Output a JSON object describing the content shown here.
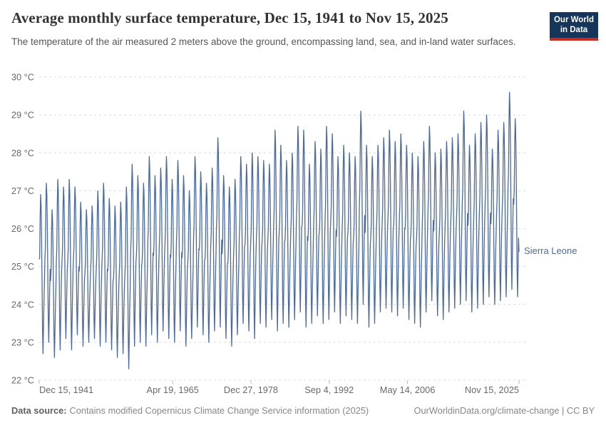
{
  "header": {
    "logo": {
      "line1": "Our World",
      "line2": "in Data",
      "bg_color": "#16355a",
      "accent_color": "#ca2b20"
    }
  },
  "footer": {
    "source_label": "Data source:",
    "source_text": "Contains modified Copernicus Climate Change Service information (2025)",
    "link": "OurWorldinData.org/climate-change",
    "license_suffix": " | CC BY"
  },
  "chart_data": {
    "type": "line",
    "title": "Average monthly surface temperature, Dec 15, 1941 to Nov 15, 2025",
    "subtitle": "The temperature of the air measured 2 meters above the ground, encompassing land, sea, and in-land water surfaces.",
    "unit": "°C",
    "ylim": [
      22,
      30
    ],
    "y_ticks": [
      22,
      23,
      24,
      25,
      26,
      27,
      28,
      29,
      30
    ],
    "y_tick_suffix": " °C",
    "x_ticks": [
      {
        "label": "Dec 15, 1941",
        "t": 1941.956
      },
      {
        "label": "Apr 19, 1965",
        "t": 1965.299
      },
      {
        "label": "Dec 27, 1978",
        "t": 1978.989
      },
      {
        "label": "Sep 4, 1992",
        "t": 1992.679
      },
      {
        "label": "May 14, 2006",
        "t": 2006.367
      },
      {
        "label": "Nov 15, 2025",
        "t": 2025.874
      }
    ],
    "grid": "dashed",
    "series": [
      {
        "name": "Sierra Leone",
        "color": "#4C6A9D",
        "first_value": 25.2,
        "last_value": 25.4,
        "seasonal_weights_dec_to_nov": [
          0.52,
          0.6,
          0.86,
          1.0,
          0.93,
          0.74,
          0.45,
          0.15,
          0.0,
          0.16,
          0.33,
          0.46
        ],
        "annual_extremes_year_max_min": [
          [
            1942,
            26.9,
            22.7
          ],
          [
            1943,
            27.2,
            23.0
          ],
          [
            1944,
            26.5,
            22.6
          ],
          [
            1945,
            27.3,
            22.8
          ],
          [
            1946,
            27.1,
            23.1
          ],
          [
            1947,
            27.3,
            22.8
          ],
          [
            1948,
            27.1,
            23.2
          ],
          [
            1949,
            26.7,
            22.9
          ],
          [
            1950,
            26.5,
            23.0
          ],
          [
            1951,
            26.6,
            23.1
          ],
          [
            1952,
            27.0,
            22.9
          ],
          [
            1953,
            27.2,
            23.0
          ],
          [
            1954,
            26.8,
            22.8
          ],
          [
            1955,
            26.6,
            22.6
          ],
          [
            1956,
            26.7,
            22.7
          ],
          [
            1957,
            27.1,
            22.3
          ],
          [
            1958,
            27.7,
            22.9
          ],
          [
            1959,
            27.4,
            23.0
          ],
          [
            1960,
            27.2,
            22.9
          ],
          [
            1961,
            27.9,
            23.2
          ],
          [
            1962,
            27.4,
            23.0
          ],
          [
            1963,
            27.6,
            23.3
          ],
          [
            1964,
            27.9,
            23.1
          ],
          [
            1965,
            27.3,
            23.0
          ],
          [
            1966,
            27.8,
            23.3
          ],
          [
            1967,
            27.4,
            22.9
          ],
          [
            1968,
            27.0,
            23.1
          ],
          [
            1969,
            27.9,
            23.4
          ],
          [
            1970,
            27.5,
            23.2
          ],
          [
            1971,
            27.2,
            23.0
          ],
          [
            1972,
            27.6,
            23.3
          ],
          [
            1973,
            28.4,
            23.4
          ],
          [
            1974,
            27.4,
            23.1
          ],
          [
            1975,
            27.1,
            22.9
          ],
          [
            1976,
            27.3,
            23.2
          ],
          [
            1977,
            27.9,
            23.5
          ],
          [
            1978,
            27.7,
            23.3
          ],
          [
            1979,
            28.0,
            23.1
          ],
          [
            1980,
            27.9,
            23.5
          ],
          [
            1981,
            27.8,
            23.4
          ],
          [
            1982,
            27.7,
            23.6
          ],
          [
            1983,
            28.6,
            23.3
          ],
          [
            1984,
            28.2,
            23.5
          ],
          [
            1985,
            27.8,
            23.4
          ],
          [
            1986,
            28.0,
            23.6
          ],
          [
            1987,
            28.7,
            23.8
          ],
          [
            1988,
            28.6,
            23.4
          ],
          [
            1989,
            27.7,
            23.5
          ],
          [
            1990,
            28.3,
            23.7
          ],
          [
            1991,
            28.1,
            23.5
          ],
          [
            1992,
            28.7,
            23.6
          ],
          [
            1993,
            28.5,
            23.8
          ],
          [
            1994,
            27.9,
            23.5
          ],
          [
            1995,
            28.2,
            23.7
          ],
          [
            1996,
            28.0,
            23.6
          ],
          [
            1997,
            27.9,
            23.5
          ],
          [
            1998,
            29.1,
            24.0
          ],
          [
            1999,
            28.2,
            23.4
          ],
          [
            2000,
            27.9,
            23.5
          ],
          [
            2001,
            28.2,
            23.8
          ],
          [
            2002,
            28.4,
            23.9
          ],
          [
            2003,
            28.6,
            23.8
          ],
          [
            2004,
            28.3,
            23.7
          ],
          [
            2005,
            28.5,
            23.9
          ],
          [
            2006,
            28.2,
            23.6
          ],
          [
            2007,
            28.0,
            23.5
          ],
          [
            2008,
            27.9,
            23.4
          ],
          [
            2009,
            28.3,
            23.8
          ],
          [
            2010,
            28.7,
            24.1
          ],
          [
            2011,
            28.0,
            23.7
          ],
          [
            2012,
            28.1,
            23.6
          ],
          [
            2013,
            28.3,
            23.8
          ],
          [
            2014,
            28.4,
            23.9
          ],
          [
            2015,
            28.5,
            24.0
          ],
          [
            2016,
            29.1,
            24.1
          ],
          [
            2017,
            28.2,
            23.8
          ],
          [
            2018,
            28.5,
            23.9
          ],
          [
            2019,
            28.8,
            24.0
          ],
          [
            2020,
            29.0,
            24.2
          ],
          [
            2021,
            28.1,
            24.0
          ],
          [
            2022,
            28.6,
            24.1
          ],
          [
            2023,
            28.8,
            24.2
          ],
          [
            2024,
            29.6,
            24.4
          ],
          [
            2025,
            28.9,
            24.2
          ]
        ]
      }
    ]
  }
}
